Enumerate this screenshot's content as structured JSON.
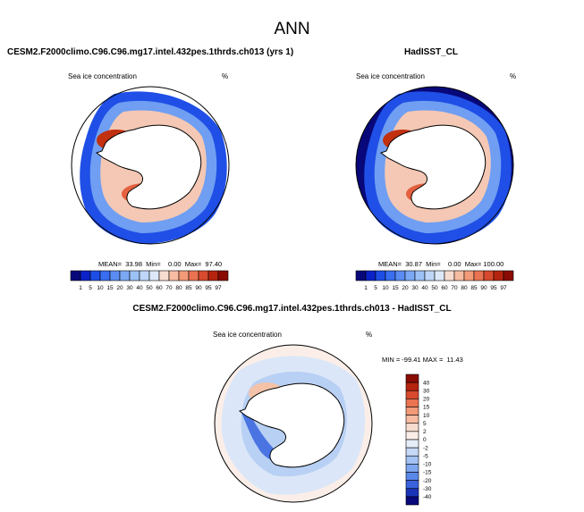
{
  "figure": {
    "title": "ANN",
    "colors": {
      "land": "#ffffff",
      "outline": "#000000"
    }
  },
  "panels": [
    {
      "id": "model",
      "title": "CESM2.F2000climo.C96.C96.mg17.intel.432pes.1thrds.ch013 (yrs 1)",
      "variable": "Sea ice concentration",
      "units": "%",
      "stats": "MEAN=  33.98  Min=    0.00  Max=  97.40",
      "colorbar_labels": [
        "1",
        "5",
        "10",
        "15",
        "20",
        "30",
        "40",
        "50",
        "60",
        "70",
        "80",
        "85",
        "90",
        "95",
        "97"
      ],
      "colorbar_colors": [
        "#08087a",
        "#0a22c8",
        "#1e4de6",
        "#3a6ef0",
        "#5a8cf2",
        "#7aa8f4",
        "#9cc1f6",
        "#bed6f8",
        "#dde9f8",
        "#f6ddd0",
        "#f7bca2",
        "#f39a78",
        "#ea7352",
        "#d84a2e",
        "#b5240f",
        "#8a0b04"
      ]
    },
    {
      "id": "obs",
      "title": "HadISST_CL",
      "variable": "Sea ice concentration",
      "units": "%",
      "stats": "MEAN=  30.87  Min=    0.00  Max= 100.00",
      "colorbar_labels": [
        "1",
        "5",
        "10",
        "15",
        "20",
        "30",
        "40",
        "50",
        "60",
        "70",
        "80",
        "85",
        "90",
        "95",
        "97"
      ],
      "colorbar_colors": [
        "#08087a",
        "#0a22c8",
        "#1e4de6",
        "#3a6ef0",
        "#5a8cf2",
        "#7aa8f4",
        "#9cc1f6",
        "#bed6f8",
        "#dde9f8",
        "#f6ddd0",
        "#f7bca2",
        "#f39a78",
        "#ea7352",
        "#d84a2e",
        "#b5240f",
        "#8a0b04"
      ]
    },
    {
      "id": "diff",
      "title": "CESM2.F2000climo.C96.C96.mg17.intel.432pes.1thrds.ch013 - HadISST_CL",
      "variable": "Sea ice concentration",
      "units": "%",
      "stats": "MIN = -99.41 MAX =  11.43",
      "colorbar_labels": [
        "40",
        "30",
        "20",
        "15",
        "10",
        "5",
        "2",
        "0",
        "-2",
        "-5",
        "-10",
        "-15",
        "-20",
        "-30",
        "-40"
      ],
      "colorbar_colors": [
        "#8a0b04",
        "#b5240f",
        "#d84a2e",
        "#ea7352",
        "#f39a78",
        "#f7bca2",
        "#f6ddd0",
        "#fbeee8",
        "#e6eefa",
        "#c6d9f6",
        "#a4c2f2",
        "#7fa6ee",
        "#5a88e8",
        "#3a62dc",
        "#1a34b8",
        "#08087a"
      ]
    }
  ]
}
